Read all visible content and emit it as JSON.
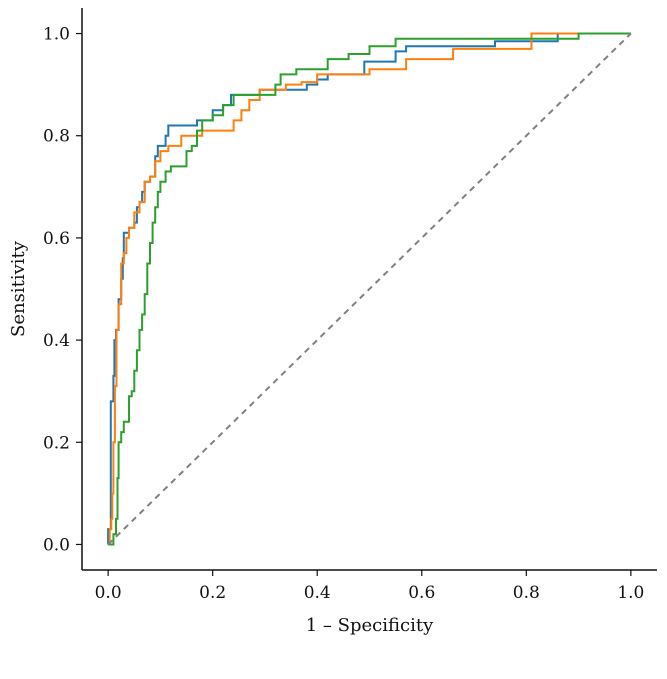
{
  "chart_data": {
    "type": "line",
    "title": "",
    "xlabel": "1 – Specificity",
    "ylabel": "Sensitivity",
    "xlim": [
      -0.05,
      1.05
    ],
    "ylim": [
      -0.05,
      1.05
    ],
    "x_ticks": [
      "0.0",
      "0.2",
      "0.4",
      "0.6",
      "0.8",
      "1.0"
    ],
    "y_ticks": [
      "0.0",
      "0.2",
      "0.4",
      "0.6",
      "0.8",
      "1.0"
    ],
    "grid": false,
    "legend": "none",
    "series": [
      {
        "color": "#1f77b4",
        "points": [
          [
            0,
            0
          ],
          [
            0,
            0.03
          ],
          [
            0.005,
            0.03
          ],
          [
            0.005,
            0.28
          ],
          [
            0.01,
            0.28
          ],
          [
            0.01,
            0.33
          ],
          [
            0.012,
            0.33
          ],
          [
            0.012,
            0.4
          ],
          [
            0.015,
            0.4
          ],
          [
            0.015,
            0.42
          ],
          [
            0.02,
            0.42
          ],
          [
            0.02,
            0.48
          ],
          [
            0.025,
            0.48
          ],
          [
            0.025,
            0.52
          ],
          [
            0.028,
            0.52
          ],
          [
            0.028,
            0.56
          ],
          [
            0.03,
            0.56
          ],
          [
            0.03,
            0.61
          ],
          [
            0.04,
            0.61
          ],
          [
            0.04,
            0.62
          ],
          [
            0.05,
            0.62
          ],
          [
            0.05,
            0.63
          ],
          [
            0.055,
            0.63
          ],
          [
            0.055,
            0.66
          ],
          [
            0.06,
            0.66
          ],
          [
            0.06,
            0.67
          ],
          [
            0.065,
            0.67
          ],
          [
            0.065,
            0.69
          ],
          [
            0.07,
            0.69
          ],
          [
            0.07,
            0.71
          ],
          [
            0.08,
            0.71
          ],
          [
            0.08,
            0.72
          ],
          [
            0.09,
            0.72
          ],
          [
            0.09,
            0.76
          ],
          [
            0.095,
            0.76
          ],
          [
            0.095,
            0.78
          ],
          [
            0.11,
            0.78
          ],
          [
            0.11,
            0.8
          ],
          [
            0.115,
            0.8
          ],
          [
            0.115,
            0.82
          ],
          [
            0.17,
            0.82
          ],
          [
            0.17,
            0.83
          ],
          [
            0.2,
            0.83
          ],
          [
            0.2,
            0.85
          ],
          [
            0.22,
            0.85
          ],
          [
            0.22,
            0.86
          ],
          [
            0.235,
            0.86
          ],
          [
            0.235,
            0.88
          ],
          [
            0.29,
            0.88
          ],
          [
            0.29,
            0.89
          ],
          [
            0.38,
            0.89
          ],
          [
            0.38,
            0.9
          ],
          [
            0.4,
            0.9
          ],
          [
            0.4,
            0.91
          ],
          [
            0.42,
            0.91
          ],
          [
            0.42,
            0.92
          ],
          [
            0.49,
            0.92
          ],
          [
            0.49,
            0.945
          ],
          [
            0.55,
            0.945
          ],
          [
            0.55,
            0.965
          ],
          [
            0.57,
            0.965
          ],
          [
            0.57,
            0.975
          ],
          [
            0.74,
            0.975
          ],
          [
            0.74,
            0.985
          ],
          [
            0.86,
            0.985
          ],
          [
            0.86,
            1.0
          ],
          [
            1.0,
            1.0
          ]
        ]
      },
      {
        "color": "#ff7f0e",
        "points": [
          [
            0,
            0
          ],
          [
            0.003,
            0
          ],
          [
            0.003,
            0.03
          ],
          [
            0.006,
            0.03
          ],
          [
            0.006,
            0.05
          ],
          [
            0.008,
            0.05
          ],
          [
            0.008,
            0.1
          ],
          [
            0.01,
            0.1
          ],
          [
            0.01,
            0.2
          ],
          [
            0.013,
            0.2
          ],
          [
            0.013,
            0.31
          ],
          [
            0.016,
            0.31
          ],
          [
            0.016,
            0.42
          ],
          [
            0.02,
            0.42
          ],
          [
            0.02,
            0.47
          ],
          [
            0.025,
            0.47
          ],
          [
            0.025,
            0.55
          ],
          [
            0.03,
            0.55
          ],
          [
            0.03,
            0.57
          ],
          [
            0.035,
            0.57
          ],
          [
            0.035,
            0.6
          ],
          [
            0.04,
            0.6
          ],
          [
            0.04,
            0.62
          ],
          [
            0.05,
            0.62
          ],
          [
            0.05,
            0.65
          ],
          [
            0.06,
            0.65
          ],
          [
            0.06,
            0.67
          ],
          [
            0.07,
            0.67
          ],
          [
            0.07,
            0.71
          ],
          [
            0.08,
            0.71
          ],
          [
            0.08,
            0.72
          ],
          [
            0.09,
            0.72
          ],
          [
            0.09,
            0.75
          ],
          [
            0.1,
            0.75
          ],
          [
            0.1,
            0.77
          ],
          [
            0.115,
            0.77
          ],
          [
            0.115,
            0.78
          ],
          [
            0.14,
            0.78
          ],
          [
            0.14,
            0.8
          ],
          [
            0.18,
            0.8
          ],
          [
            0.18,
            0.81
          ],
          [
            0.24,
            0.81
          ],
          [
            0.24,
            0.83
          ],
          [
            0.255,
            0.83
          ],
          [
            0.255,
            0.85
          ],
          [
            0.27,
            0.85
          ],
          [
            0.27,
            0.87
          ],
          [
            0.29,
            0.87
          ],
          [
            0.29,
            0.89
          ],
          [
            0.34,
            0.89
          ],
          [
            0.34,
            0.9
          ],
          [
            0.37,
            0.9
          ],
          [
            0.37,
            0.905
          ],
          [
            0.4,
            0.905
          ],
          [
            0.4,
            0.92
          ],
          [
            0.5,
            0.92
          ],
          [
            0.5,
            0.93
          ],
          [
            0.57,
            0.93
          ],
          [
            0.57,
            0.95
          ],
          [
            0.66,
            0.95
          ],
          [
            0.66,
            0.97
          ],
          [
            0.81,
            0.97
          ],
          [
            0.81,
            1.0
          ],
          [
            1.0,
            1.0
          ]
        ]
      },
      {
        "color": "#2ca02c",
        "points": [
          [
            0,
            0
          ],
          [
            0.01,
            0
          ],
          [
            0.01,
            0.02
          ],
          [
            0.015,
            0.02
          ],
          [
            0.015,
            0.05
          ],
          [
            0.018,
            0.05
          ],
          [
            0.018,
            0.13
          ],
          [
            0.02,
            0.13
          ],
          [
            0.02,
            0.2
          ],
          [
            0.025,
            0.2
          ],
          [
            0.025,
            0.22
          ],
          [
            0.03,
            0.22
          ],
          [
            0.03,
            0.24
          ],
          [
            0.04,
            0.24
          ],
          [
            0.04,
            0.29
          ],
          [
            0.045,
            0.29
          ],
          [
            0.045,
            0.3
          ],
          [
            0.05,
            0.3
          ],
          [
            0.05,
            0.34
          ],
          [
            0.055,
            0.34
          ],
          [
            0.055,
            0.38
          ],
          [
            0.06,
            0.38
          ],
          [
            0.06,
            0.42
          ],
          [
            0.065,
            0.42
          ],
          [
            0.065,
            0.45
          ],
          [
            0.07,
            0.45
          ],
          [
            0.07,
            0.49
          ],
          [
            0.075,
            0.49
          ],
          [
            0.075,
            0.55
          ],
          [
            0.08,
            0.55
          ],
          [
            0.08,
            0.59
          ],
          [
            0.085,
            0.59
          ],
          [
            0.085,
            0.63
          ],
          [
            0.09,
            0.63
          ],
          [
            0.09,
            0.66
          ],
          [
            0.095,
            0.66
          ],
          [
            0.095,
            0.69
          ],
          [
            0.1,
            0.69
          ],
          [
            0.1,
            0.71
          ],
          [
            0.11,
            0.71
          ],
          [
            0.11,
            0.73
          ],
          [
            0.12,
            0.73
          ],
          [
            0.12,
            0.74
          ],
          [
            0.15,
            0.74
          ],
          [
            0.15,
            0.77
          ],
          [
            0.16,
            0.77
          ],
          [
            0.16,
            0.78
          ],
          [
            0.17,
            0.78
          ],
          [
            0.17,
            0.81
          ],
          [
            0.18,
            0.81
          ],
          [
            0.18,
            0.83
          ],
          [
            0.2,
            0.83
          ],
          [
            0.2,
            0.84
          ],
          [
            0.22,
            0.84
          ],
          [
            0.22,
            0.86
          ],
          [
            0.24,
            0.86
          ],
          [
            0.24,
            0.88
          ],
          [
            0.32,
            0.88
          ],
          [
            0.32,
            0.9
          ],
          [
            0.33,
            0.9
          ],
          [
            0.33,
            0.92
          ],
          [
            0.36,
            0.92
          ],
          [
            0.36,
            0.93
          ],
          [
            0.42,
            0.93
          ],
          [
            0.42,
            0.95
          ],
          [
            0.46,
            0.95
          ],
          [
            0.46,
            0.96
          ],
          [
            0.5,
            0.96
          ],
          [
            0.5,
            0.975
          ],
          [
            0.55,
            0.975
          ],
          [
            0.55,
            0.99
          ],
          [
            0.9,
            0.99
          ],
          [
            0.9,
            1.0
          ],
          [
            1.0,
            1.0
          ]
        ]
      },
      {
        "color": "#808080",
        "dashed": true,
        "points": [
          [
            0,
            0
          ],
          [
            1,
            1
          ]
        ]
      }
    ]
  }
}
